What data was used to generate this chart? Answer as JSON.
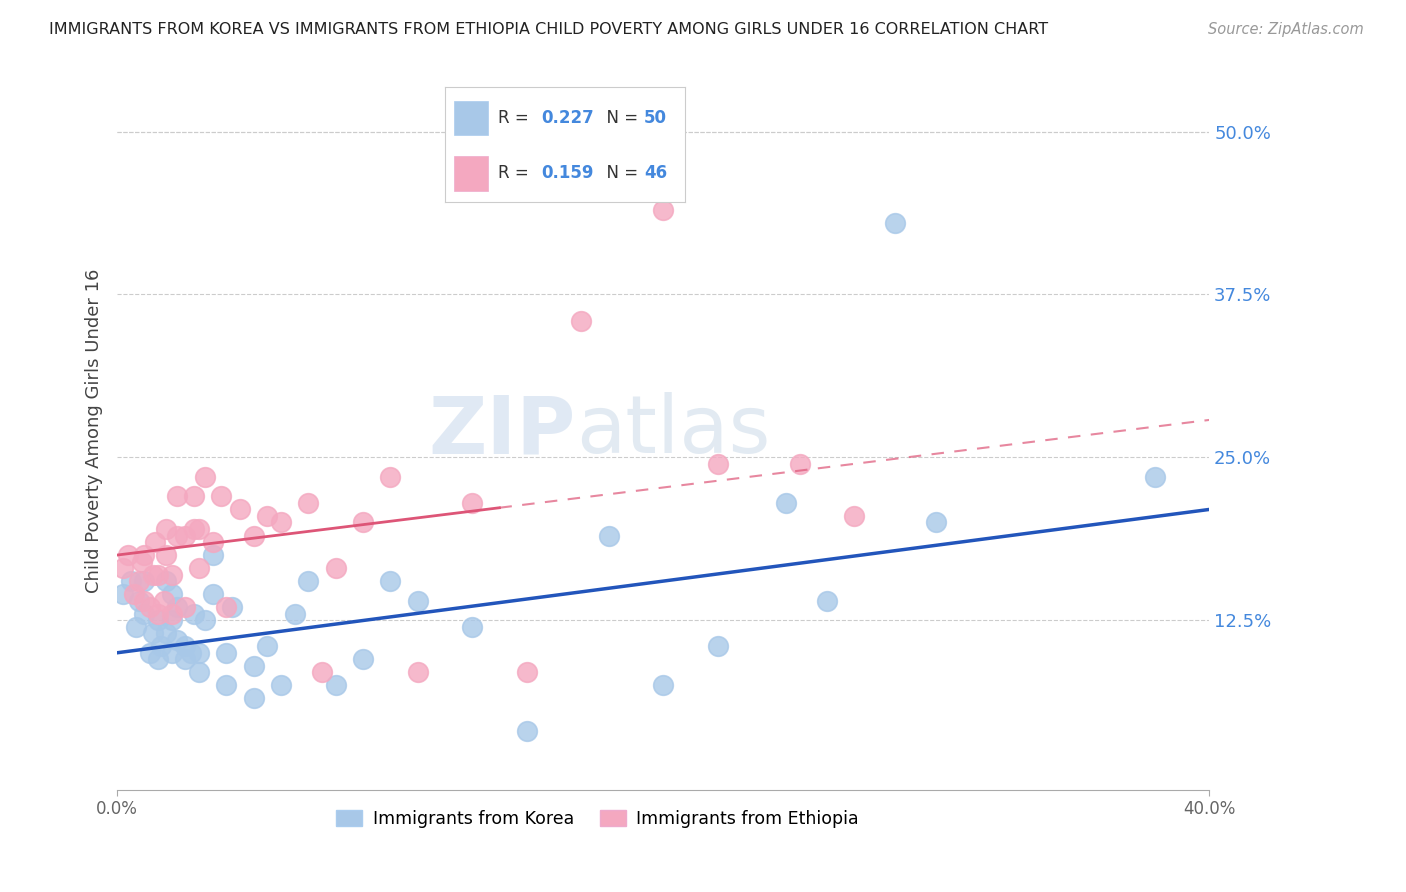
{
  "title": "IMMIGRANTS FROM KOREA VS IMMIGRANTS FROM ETHIOPIA CHILD POVERTY AMONG GIRLS UNDER 16 CORRELATION CHART",
  "source": "Source: ZipAtlas.com",
  "ylabel": "Child Poverty Among Girls Under 16",
  "ytick_labels": [
    "50.0%",
    "37.5%",
    "25.0%",
    "12.5%"
  ],
  "ytick_values": [
    0.5,
    0.375,
    0.25,
    0.125
  ],
  "xlim": [
    0.0,
    0.4
  ],
  "ylim": [
    -0.005,
    0.545
  ],
  "watermark_zip": "ZIP",
  "watermark_atlas": "atlas",
  "legend_korea_R": "0.227",
  "legend_korea_N": "50",
  "legend_ethiopia_R": "0.159",
  "legend_ethiopia_N": "46",
  "korea_color": "#a8c8e8",
  "ethiopia_color": "#f4a8c0",
  "korea_line_color": "#2255bb",
  "ethiopia_line_color": "#dd5577",
  "korea_scatter_x": [
    0.002,
    0.005,
    0.007,
    0.008,
    0.01,
    0.01,
    0.012,
    0.013,
    0.015,
    0.015,
    0.016,
    0.018,
    0.018,
    0.02,
    0.02,
    0.02,
    0.022,
    0.022,
    0.025,
    0.025,
    0.027,
    0.028,
    0.03,
    0.03,
    0.032,
    0.035,
    0.035,
    0.04,
    0.04,
    0.042,
    0.05,
    0.05,
    0.055,
    0.06,
    0.065,
    0.07,
    0.08,
    0.09,
    0.1,
    0.11,
    0.13,
    0.15,
    0.18,
    0.2,
    0.22,
    0.245,
    0.26,
    0.285,
    0.3,
    0.38
  ],
  "korea_scatter_y": [
    0.145,
    0.155,
    0.12,
    0.14,
    0.13,
    0.155,
    0.1,
    0.115,
    0.095,
    0.125,
    0.105,
    0.115,
    0.155,
    0.1,
    0.125,
    0.145,
    0.11,
    0.135,
    0.095,
    0.105,
    0.1,
    0.13,
    0.085,
    0.1,
    0.125,
    0.145,
    0.175,
    0.075,
    0.1,
    0.135,
    0.065,
    0.09,
    0.105,
    0.075,
    0.13,
    0.155,
    0.075,
    0.095,
    0.155,
    0.14,
    0.12,
    0.04,
    0.19,
    0.075,
    0.105,
    0.215,
    0.14,
    0.43,
    0.2,
    0.235
  ],
  "ethiopia_scatter_x": [
    0.002,
    0.004,
    0.006,
    0.008,
    0.009,
    0.01,
    0.01,
    0.012,
    0.013,
    0.014,
    0.015,
    0.015,
    0.017,
    0.018,
    0.018,
    0.02,
    0.02,
    0.022,
    0.022,
    0.025,
    0.025,
    0.028,
    0.028,
    0.03,
    0.03,
    0.032,
    0.035,
    0.038,
    0.04,
    0.045,
    0.05,
    0.055,
    0.06,
    0.07,
    0.075,
    0.08,
    0.09,
    0.1,
    0.11,
    0.13,
    0.15,
    0.17,
    0.2,
    0.22,
    0.25,
    0.27
  ],
  "ethiopia_scatter_y": [
    0.165,
    0.175,
    0.145,
    0.155,
    0.17,
    0.14,
    0.175,
    0.135,
    0.16,
    0.185,
    0.13,
    0.16,
    0.14,
    0.175,
    0.195,
    0.13,
    0.16,
    0.19,
    0.22,
    0.135,
    0.19,
    0.195,
    0.22,
    0.165,
    0.195,
    0.235,
    0.185,
    0.22,
    0.135,
    0.21,
    0.19,
    0.205,
    0.2,
    0.215,
    0.085,
    0.165,
    0.2,
    0.235,
    0.085,
    0.215,
    0.085,
    0.355,
    0.44,
    0.245,
    0.245,
    0.205
  ]
}
